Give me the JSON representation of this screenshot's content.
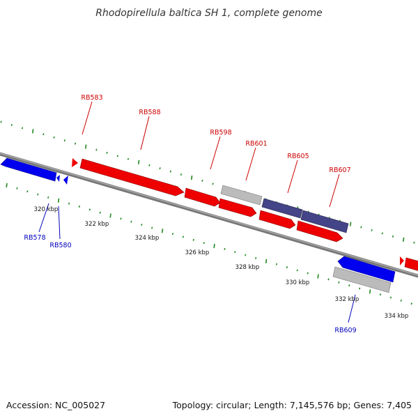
{
  "title": "Rhodopirellula baltica SH 1, complete genome",
  "accession": "Accession: NC_005027",
  "summary": "Topology: circular; Length: 7,145,576 bp; Genes: 7,405",
  "colors": {
    "forward": "#ee0000",
    "reverse": "#0000ee",
    "pseudo": "#bbbbbb",
    "rna": "#444488",
    "backbone": "#888888",
    "ticks": "#228822",
    "label_forward": "#cc0000",
    "label_reverse": "#0000bb"
  },
  "tick_labels": [
    "320 kbp",
    "322 kbp",
    "324 kbp",
    "326 kbp",
    "328 kbp",
    "330 kbp",
    "332 kbp",
    "334 kbp"
  ],
  "gene_labels": {
    "RB583": "RB583",
    "RB588": "RB588",
    "RB598": "RB598",
    "RB601": "RB601",
    "RB605": "RB605",
    "RB607": "RB607",
    "RB578": "RB578",
    "RB580": "RB580",
    "RB609": "RB609"
  }
}
